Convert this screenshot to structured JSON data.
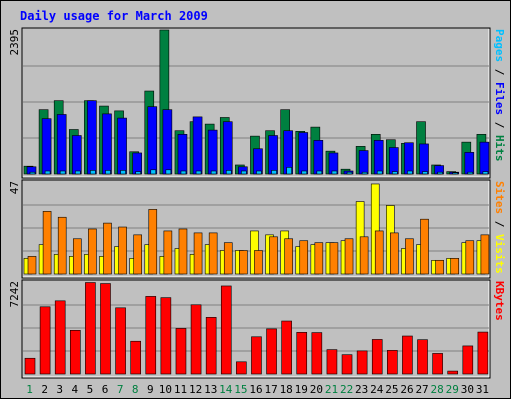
{
  "chart_data": {
    "type": "bar",
    "title": "Daily usage for March 2009",
    "days": [
      "1",
      "2",
      "3",
      "4",
      "5",
      "6",
      "7",
      "8",
      "9",
      "10",
      "11",
      "12",
      "13",
      "14",
      "15",
      "16",
      "17",
      "18",
      "19",
      "20",
      "21",
      "22",
      "23",
      "24",
      "25",
      "26",
      "27",
      "28",
      "29",
      "30",
      "31"
    ],
    "weekend_days": [
      "1",
      "7",
      "8",
      "14",
      "15",
      "21",
      "22",
      "28",
      "29"
    ],
    "panels": [
      {
        "key": "hits_files_pages",
        "max_label": "2395",
        "ymax": 2395,
        "right_labels": [
          {
            "text": "Pages",
            "color": "#00c0ff"
          },
          {
            "text": " / ",
            "color": "#000000"
          },
          {
            "text": "Files",
            "color": "#0000ff"
          },
          {
            "text": " / ",
            "color": "#000000"
          },
          {
            "text": "Hits",
            "color": "#008040"
          }
        ],
        "series": [
          {
            "name": "Hits",
            "color": "#008040",
            "values": [
              130,
              1070,
              1220,
              740,
              1220,
              1130,
              1050,
              370,
              1380,
              2395,
              720,
              870,
              830,
              940,
              150,
              630,
              720,
              1070,
              710,
              780,
              380,
              80,
              460,
              660,
              570,
              510,
              870,
              150,
              40,
              530,
              660
            ]
          },
          {
            "name": "Files",
            "color": "#0000ff",
            "values": [
              120,
              920,
              990,
              640,
              1220,
              1000,
              930,
              350,
              1120,
              1070,
              660,
              950,
              730,
              870,
              120,
              420,
              640,
              720,
              690,
              560,
              350,
              50,
              390,
              560,
              440,
              520,
              500,
              140,
              30,
              360,
              530
            ]
          },
          {
            "name": "Pages",
            "color": "#00c0ff",
            "values": [
              30,
              50,
              50,
              50,
              60,
              60,
              60,
              40,
              70,
              70,
              50,
              50,
              50,
              60,
              50,
              50,
              60,
              110,
              50,
              50,
              50,
              30,
              30,
              50,
              40,
              50,
              40,
              30,
              20,
              30,
              40
            ]
          }
        ]
      },
      {
        "key": "visits_sites",
        "max_label": "47",
        "ymax": 47,
        "right_labels": [
          {
            "text": "Sites",
            "color": "#ff8000"
          },
          {
            "text": " / ",
            "color": "#000000"
          },
          {
            "text": "Visits",
            "color": "#ffff00"
          }
        ],
        "series": [
          {
            "name": "Visits",
            "color": "#ffff00",
            "values": [
              8,
              15,
              10,
              9,
              10,
              9,
              14,
              8,
              15,
              9,
              13,
              10,
              15,
              12,
              12,
              22,
              20,
              22,
              14,
              15,
              16,
              17,
              37,
              46,
              35,
              13,
              15,
              7,
              8,
              16,
              17
            ]
          },
          {
            "name": "Sites",
            "color": "#ff8000",
            "values": [
              9,
              32,
              29,
              18,
              23,
              26,
              24,
              20,
              33,
              22,
              23,
              21,
              21,
              16,
              12,
              12,
              19,
              18,
              17,
              16,
              16,
              18,
              19,
              22,
              21,
              18,
              28,
              7,
              8,
              17,
              20
            ]
          }
        ]
      },
      {
        "key": "kbytes",
        "max_label": "7242",
        "ymax": 7242,
        "right_labels": [
          {
            "text": "KBytes",
            "color": "#ff0000"
          }
        ],
        "series": [
          {
            "name": "KBytes",
            "color": "#ff0000",
            "values": [
              1240,
              5290,
              5760,
              3440,
              7200,
              7120,
              5210,
              2580,
              6110,
              6010,
              3590,
              5450,
              4460,
              6930,
              960,
              2930,
              3550,
              4170,
              3280,
              3260,
              1920,
              1520,
              1820,
              2720,
              1860,
              2990,
              2700,
              1620,
              230,
              2210,
              3300
            ]
          }
        ]
      }
    ]
  }
}
